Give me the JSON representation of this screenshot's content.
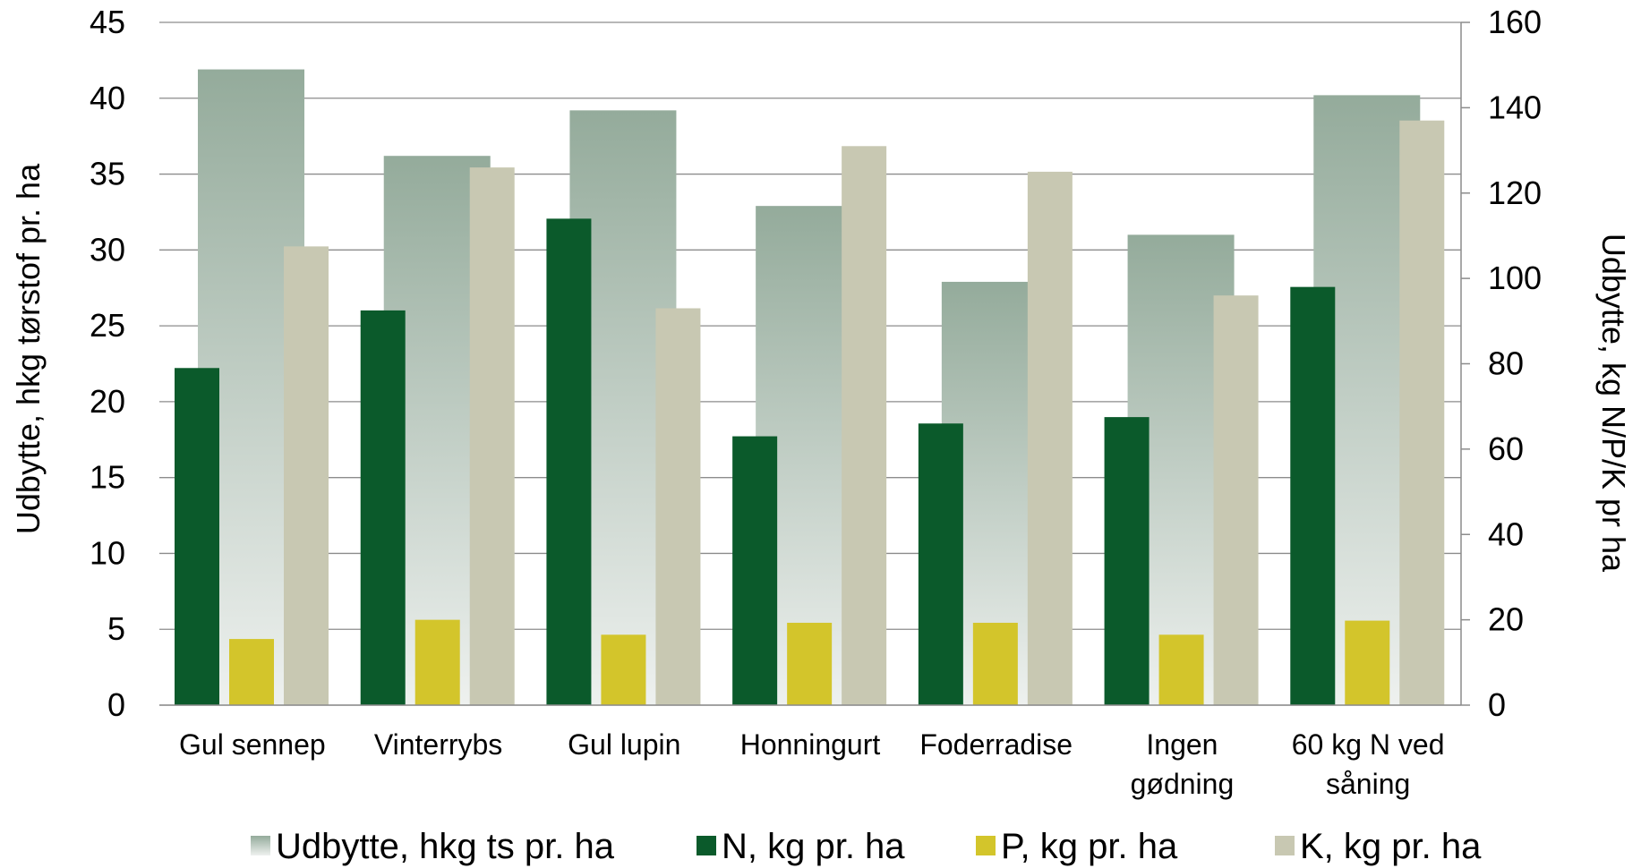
{
  "chart_data": {
    "type": "bar",
    "categories": [
      [
        "Gul sennep"
      ],
      [
        "Vinterrybs"
      ],
      [
        "Gul lupin"
      ],
      [
        "Honningurt"
      ],
      [
        "Foderradise"
      ],
      [
        "Ingen",
        "gødning"
      ],
      [
        "60 kg N ved",
        "såning"
      ]
    ],
    "left_axis": {
      "label": "Udbytte, hkg tørstof pr. ha",
      "ylim": [
        0,
        45
      ],
      "ticks": [
        0,
        5,
        10,
        15,
        20,
        25,
        30,
        35,
        40,
        45
      ]
    },
    "right_axis": {
      "label": "Udbytte, kg N/P/K pr ha",
      "ylim": [
        0,
        160
      ],
      "ticks": [
        0,
        20,
        40,
        60,
        80,
        100,
        120,
        140,
        160
      ]
    },
    "grid": true,
    "legend_position": "bottom",
    "series": [
      {
        "name": "Udbytte, hkg ts pr. ha",
        "axis": "left",
        "color_top": "#94ab9b",
        "color_bottom": "#eef1ef",
        "values": [
          41.9,
          36.2,
          39.2,
          32.9,
          27.9,
          31.0,
          40.2
        ]
      },
      {
        "name": "N, kg pr. ha",
        "axis": "right",
        "color": "#0b5a2b",
        "values": [
          79,
          92.5,
          114,
          63,
          66,
          67.5,
          98
        ]
      },
      {
        "name": "P, kg pr. ha",
        "axis": "right",
        "color": "#d3c52b",
        "values": [
          15.5,
          20,
          16.5,
          19.3,
          19.3,
          16.5,
          19.8
        ]
      },
      {
        "name": "K, kg pr. ha",
        "axis": "right",
        "color": "#c8c8b2",
        "values": [
          107.5,
          126,
          93,
          131,
          125,
          96,
          137
        ]
      }
    ]
  }
}
